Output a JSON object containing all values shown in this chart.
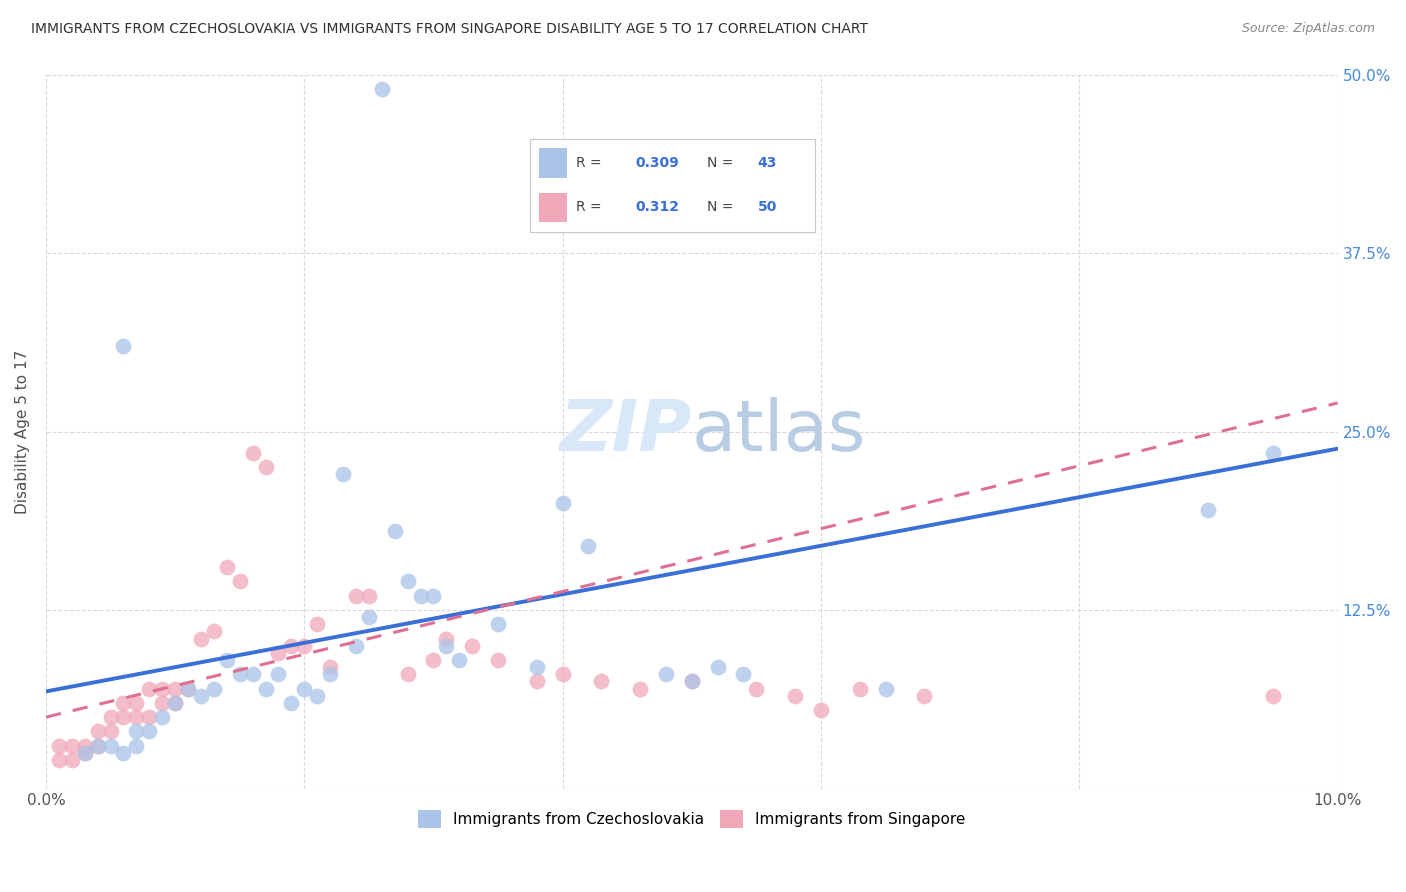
{
  "title": "IMMIGRANTS FROM CZECHOSLOVAKIA VS IMMIGRANTS FROM SINGAPORE DISABILITY AGE 5 TO 17 CORRELATION CHART",
  "source": "Source: ZipAtlas.com",
  "ylabel": "Disability Age 5 to 17",
  "legend_label1": "Immigrants from Czechoslovakia",
  "legend_label2": "Immigrants from Singapore",
  "r1": 0.309,
  "n1": 43,
  "r2": 0.312,
  "n2": 50,
  "xlim": [
    0.0,
    0.1
  ],
  "ylim": [
    0.0,
    0.5
  ],
  "xticks": [
    0.0,
    0.02,
    0.04,
    0.06,
    0.08,
    0.1
  ],
  "yticks": [
    0.0,
    0.125,
    0.25,
    0.375,
    0.5
  ],
  "xticklabels": [
    "0.0%",
    "",
    "",
    "",
    "",
    "10.0%"
  ],
  "yticklabels": [
    "",
    "12.5%",
    "25.0%",
    "37.5%",
    "50.0%"
  ],
  "color_blue": "#aac4e8",
  "color_pink": "#f0a8b8",
  "line_blue": "#3a6fd8",
  "line_pink": "#e07090",
  "title_color": "#303030",
  "source_color": "#888888",
  "axis_label_color": "#505050",
  "tick_color_right": "#4488dd",
  "background_color": "#ffffff",
  "grid_color": "#d0d0d0",
  "watermark_color": "#d8e8f8",
  "blue_line_x0": 0.0,
  "blue_line_y0": 0.068,
  "blue_line_x1": 0.1,
  "blue_line_y1": 0.238,
  "pink_line_x0": 0.0,
  "pink_line_y0": 0.05,
  "pink_line_x1": 0.1,
  "pink_line_y1": 0.27,
  "scatter_blue_x": [
    0.026,
    0.006,
    0.003,
    0.004,
    0.005,
    0.006,
    0.007,
    0.007,
    0.008,
    0.009,
    0.01,
    0.011,
    0.012,
    0.013,
    0.014,
    0.015,
    0.016,
    0.017,
    0.018,
    0.019,
    0.02,
    0.021,
    0.022,
    0.023,
    0.024,
    0.025,
    0.027,
    0.028,
    0.029,
    0.03,
    0.031,
    0.032,
    0.035,
    0.038,
    0.04,
    0.042,
    0.048,
    0.05,
    0.052,
    0.054,
    0.065,
    0.09,
    0.095
  ],
  "scatter_blue_y": [
    0.49,
    0.31,
    0.025,
    0.03,
    0.03,
    0.025,
    0.03,
    0.04,
    0.04,
    0.05,
    0.06,
    0.07,
    0.065,
    0.07,
    0.09,
    0.08,
    0.08,
    0.07,
    0.08,
    0.06,
    0.07,
    0.065,
    0.08,
    0.22,
    0.1,
    0.12,
    0.18,
    0.145,
    0.135,
    0.135,
    0.1,
    0.09,
    0.115,
    0.085,
    0.2,
    0.17,
    0.08,
    0.075,
    0.085,
    0.08,
    0.07,
    0.195,
    0.235
  ],
  "scatter_pink_x": [
    0.001,
    0.001,
    0.002,
    0.002,
    0.003,
    0.003,
    0.004,
    0.004,
    0.005,
    0.005,
    0.006,
    0.006,
    0.007,
    0.007,
    0.008,
    0.008,
    0.009,
    0.009,
    0.01,
    0.01,
    0.011,
    0.012,
    0.013,
    0.014,
    0.015,
    0.016,
    0.017,
    0.018,
    0.019,
    0.02,
    0.021,
    0.022,
    0.024,
    0.025,
    0.028,
    0.03,
    0.031,
    0.033,
    0.035,
    0.038,
    0.04,
    0.043,
    0.046,
    0.05,
    0.055,
    0.058,
    0.06,
    0.063,
    0.068,
    0.095
  ],
  "scatter_pink_y": [
    0.02,
    0.03,
    0.02,
    0.03,
    0.025,
    0.03,
    0.03,
    0.04,
    0.04,
    0.05,
    0.05,
    0.06,
    0.05,
    0.06,
    0.05,
    0.07,
    0.06,
    0.07,
    0.06,
    0.07,
    0.07,
    0.105,
    0.11,
    0.155,
    0.145,
    0.235,
    0.225,
    0.095,
    0.1,
    0.1,
    0.115,
    0.085,
    0.135,
    0.135,
    0.08,
    0.09,
    0.105,
    0.1,
    0.09,
    0.075,
    0.08,
    0.075,
    0.07,
    0.075,
    0.07,
    0.065,
    0.055,
    0.07,
    0.065,
    0.065
  ]
}
